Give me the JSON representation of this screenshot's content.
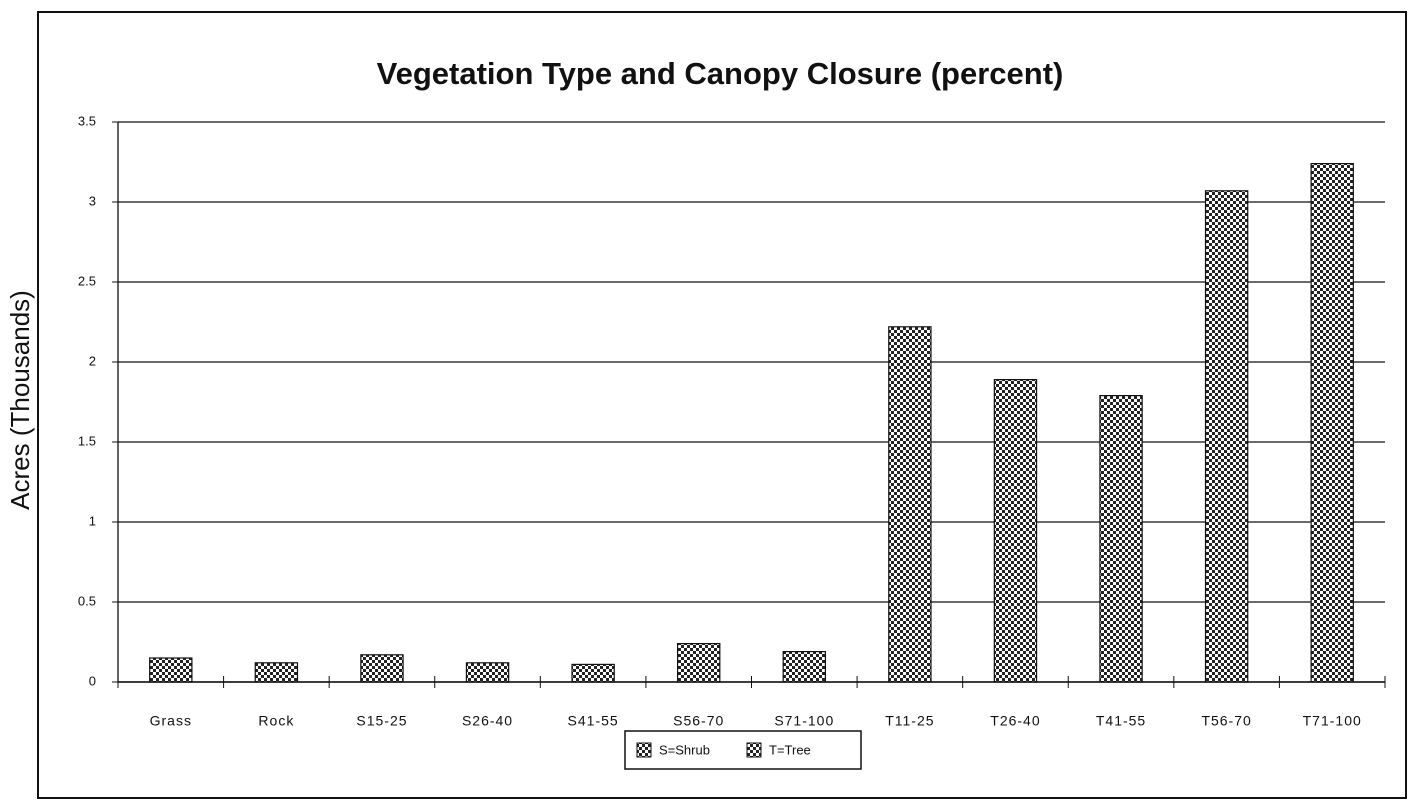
{
  "chart_data": {
    "type": "bar",
    "title": "Vegetation Type and Canopy Closure (percent)",
    "y_label": "Acres (Thousands)",
    "categories": [
      "Grass",
      "Rock",
      "S15-25",
      "S26-40",
      "S41-55",
      "S56-70",
      "S71-100",
      "T11-25",
      "T26-40",
      "T41-55",
      "T56-70",
      "T71-100"
    ],
    "values": [
      0.15,
      0.12,
      0.17,
      0.12,
      0.11,
      0.24,
      0.19,
      2.22,
      1.89,
      1.79,
      3.07,
      3.24
    ],
    "ylim": [
      0,
      3.5
    ],
    "yticks": [
      0,
      0.5,
      1,
      1.5,
      2,
      2.5,
      3,
      3.5
    ],
    "grid": true,
    "legend": [
      "S=Shrub",
      "T=Tree"
    ]
  }
}
